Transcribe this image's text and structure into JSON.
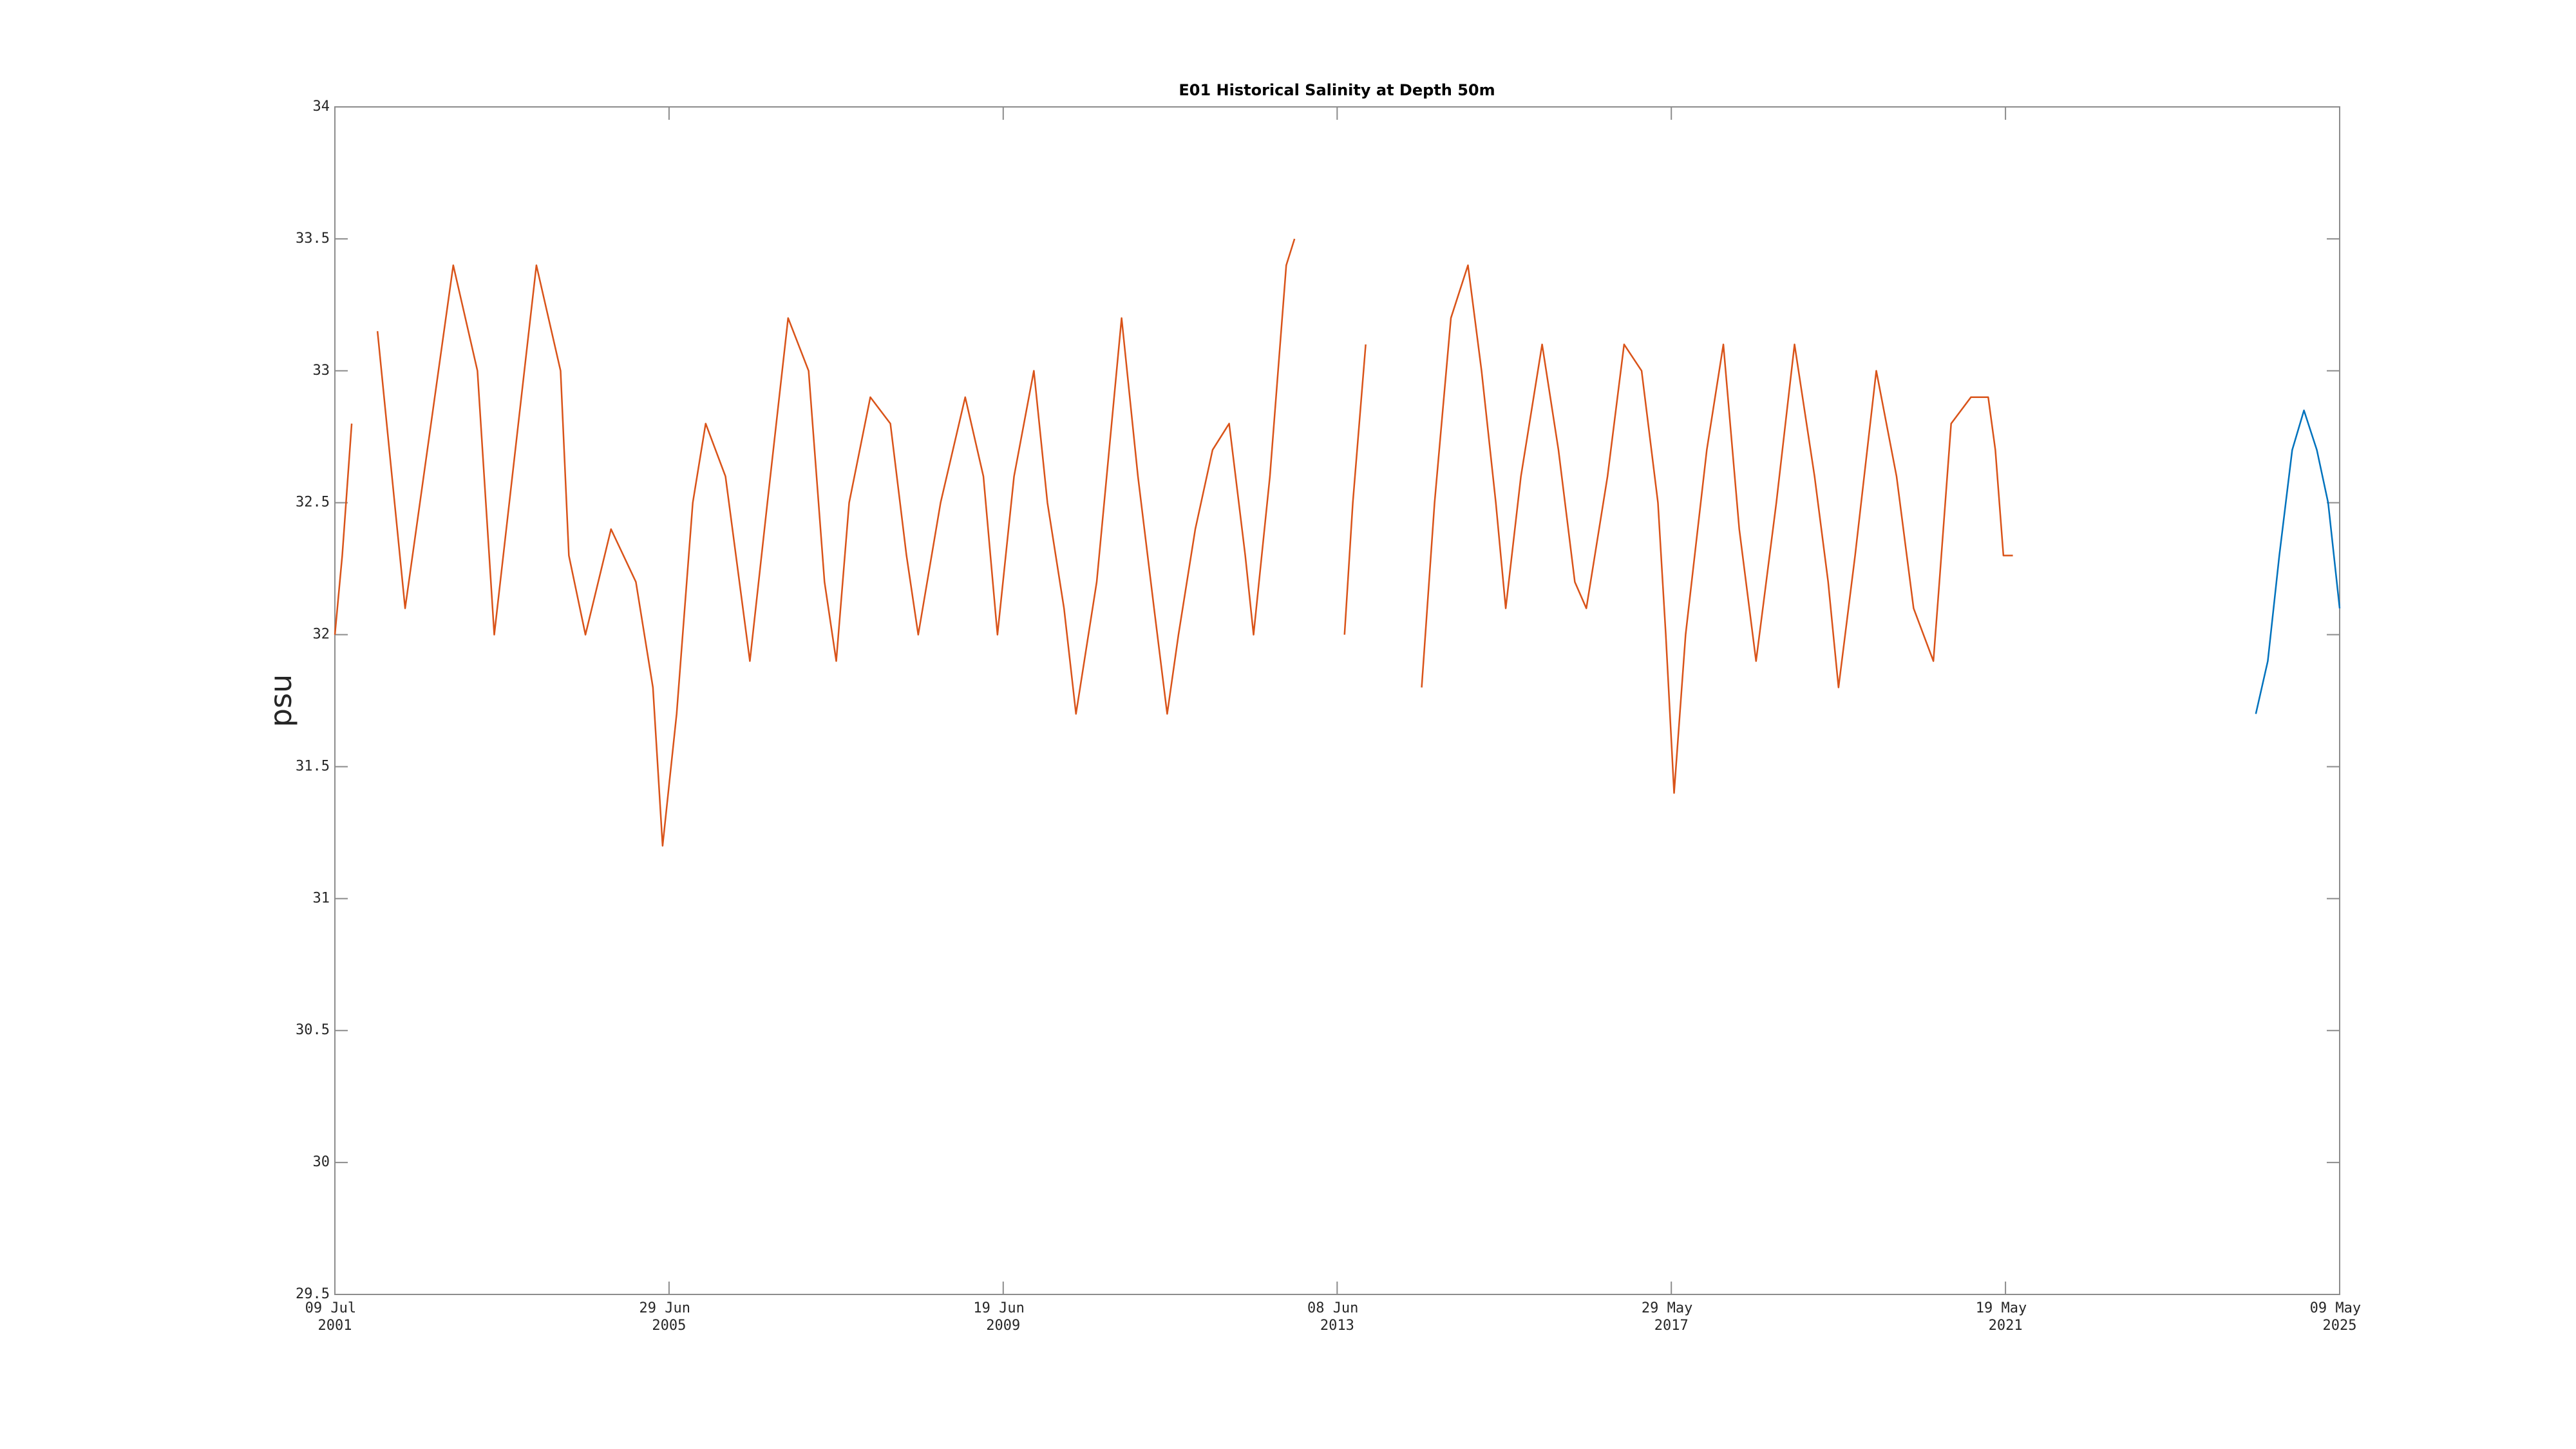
{
  "chart_data": {
    "type": "line",
    "title": "E01 Historical Salinity at Depth 50m",
    "y_label": "psu",
    "xlim": [
      "2001-07-09",
      "2025-05-09"
    ],
    "xticks": [
      {
        "value": "2001-07-09",
        "label": "09 Jul 2001"
      },
      {
        "value": "2005-06-29",
        "label": "29 Jun 2005"
      },
      {
        "value": "2009-06-19",
        "label": "19 Jun 2009"
      },
      {
        "value": "2013-06-08",
        "label": "08 Jun 2013"
      },
      {
        "value": "2017-05-29",
        "label": "29 May 2017"
      },
      {
        "value": "2021-05-19",
        "label": "19 May 2021"
      },
      {
        "value": "2025-05-09",
        "label": "09 May 2025"
      }
    ],
    "ylim": [
      29.5,
      34
    ],
    "yticks": [
      29.5,
      30,
      30.5,
      31,
      31.5,
      32,
      32.5,
      33,
      33.5,
      34
    ],
    "grid": false,
    "series": [
      {
        "color": "#D95319",
        "x": [
          "2001-07-09",
          "2001-08-10",
          "2001-09-20",
          "2001-11-01",
          "2002-01-10",
          "2002-05-10",
          "2002-12-05",
          "2003-03-20",
          "2003-06-01",
          "2003-12-01",
          "2004-03-15",
          "2004-04-20",
          "2004-07-01",
          "2004-10-20",
          "2005-02-05",
          "2005-04-20",
          "2005-06-01",
          "2005-08-01",
          "2005-10-10",
          "2005-12-05",
          "2006-03-01",
          "2006-06-15",
          "2006-08-30",
          "2006-11-28",
          "2007-02-25",
          "2007-05-05",
          "2007-06-25",
          "2007-08-20",
          "2007-11-20",
          "2008-02-15",
          "2008-04-25",
          "2008-06-15",
          "2008-09-20",
          "2009-01-05",
          "2009-03-25",
          "2009-05-25",
          "2009-08-05",
          "2009-10-30",
          "2009-12-28",
          "2010-03-10",
          "2010-05-01",
          "2010-07-30",
          "2010-11-15",
          "2011-01-25",
          "2011-04-05",
          "2011-06-01",
          "2011-07-20",
          "2011-10-01",
          "2011-12-15",
          "2012-02-25",
          "2012-05-05",
          "2012-06-10",
          "2012-08-20",
          "2012-10-30",
          "2012-12-05",
          "2013-03-15",
          "2013-07-10",
          "2013-08-15",
          "2013-10-10",
          "2014-02-01",
          "2014-06-10",
          "2014-08-05",
          "2014-10-15",
          "2014-12-28",
          "2015-02-25",
          "2015-04-28",
          "2015-06-10",
          "2015-08-15",
          "2015-11-15",
          "2016-01-25",
          "2016-04-05",
          "2016-05-25",
          "2016-08-25",
          "2016-11-05",
          "2017-01-20",
          "2017-04-01",
          "2017-05-05",
          "2017-06-10",
          "2017-07-30",
          "2017-10-30",
          "2018-01-10",
          "2018-03-20",
          "2018-06-01",
          "2018-08-28",
          "2018-11-15",
          "2019-02-10",
          "2019-04-10",
          "2019-05-25",
          "2019-08-05",
          "2019-11-05",
          "2020-02-01",
          "2020-04-15",
          "2020-07-10",
          "2020-08-05",
          "2020-09-25",
          "2020-12-20",
          "2021-03-05",
          "2021-04-05",
          "2021-05-10",
          "2021-06-20"
        ],
        "values": [
          32.0,
          32.3,
          32.8,
          null,
          33.15,
          32.1,
          33.4,
          33.0,
          32.0,
          33.4,
          33.0,
          32.3,
          32.0,
          32.4,
          32.2,
          31.8,
          31.2,
          31.7,
          32.5,
          32.8,
          32.6,
          31.9,
          32.5,
          33.2,
          33.0,
          32.2,
          31.9,
          32.5,
          32.9,
          32.8,
          32.3,
          32.0,
          32.5,
          32.9,
          32.6,
          32.0,
          32.6,
          33.0,
          32.5,
          32.1,
          31.7,
          32.2,
          33.2,
          32.6,
          32.1,
          31.7,
          32.0,
          32.4,
          32.7,
          32.8,
          32.3,
          32.0,
          32.6,
          33.4,
          33.5,
          null,
          32.0,
          32.5,
          33.1,
          null,
          31.8,
          32.5,
          33.2,
          33.4,
          33.0,
          32.5,
          32.1,
          32.6,
          33.1,
          32.7,
          32.2,
          32.1,
          32.6,
          33.1,
          33.0,
          32.5,
          32.0,
          31.4,
          32.0,
          32.7,
          33.1,
          32.4,
          31.9,
          32.5,
          33.1,
          32.6,
          32.2,
          31.8,
          32.3,
          33.0,
          32.6,
          32.1,
          31.9,
          32.2,
          32.8,
          32.9,
          32.9,
          32.7,
          32.3,
          32.3
        ]
      },
      {
        "color": "#0072BD",
        "x": [
          "2024-05-10",
          "2024-07-01",
          "2024-08-20",
          "2024-10-15",
          "2024-12-05",
          "2025-01-30",
          "2025-03-20",
          "2025-05-09"
        ],
        "values": [
          31.7,
          31.9,
          32.3,
          32.7,
          32.85,
          32.7,
          32.5,
          32.1
        ]
      }
    ]
  }
}
